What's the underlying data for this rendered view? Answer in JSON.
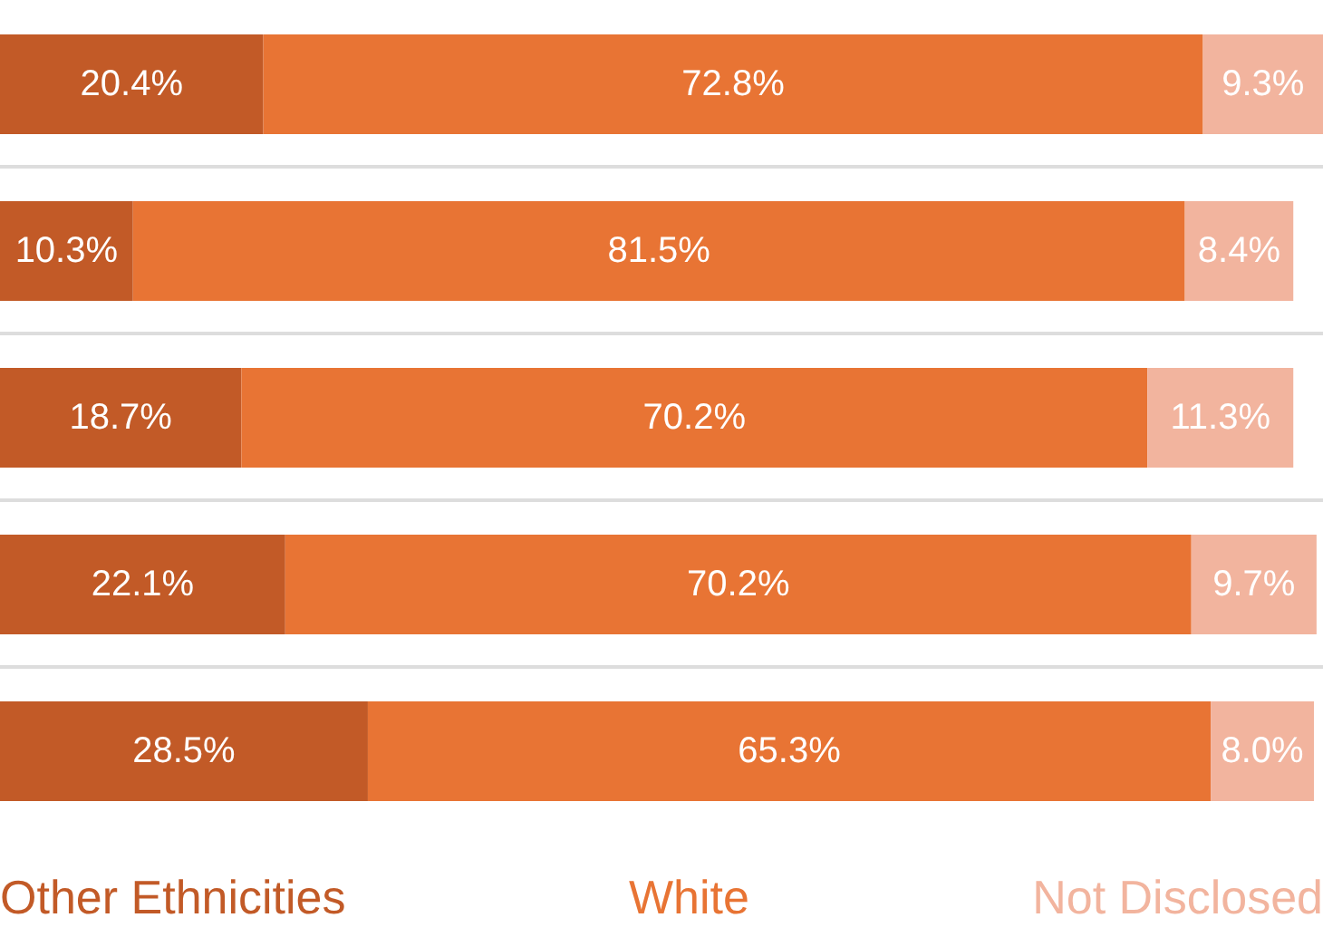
{
  "chart_data": {
    "type": "bar",
    "orientation": "horizontal",
    "stacked": true,
    "tick_labels": false,
    "categories": [
      null,
      null,
      null,
      null,
      null
    ],
    "grid": "y",
    "legend": "bottom",
    "series": [
      {
        "name": "Other Ethnicities",
        "color": "#c25a27",
        "values": [
          20.4,
          10.3,
          18.7,
          22.1,
          28.5
        ],
        "value_labels": [
          "20.4%",
          "10.3%",
          "18.7%",
          "22.1%",
          "28.5%"
        ]
      },
      {
        "name": "White",
        "color": "#e87434",
        "values": [
          72.8,
          81.5,
          70.2,
          70.2,
          65.3
        ],
        "value_labels": [
          "72.8%",
          "81.5%",
          "70.2%",
          "70.2%",
          "65.3%"
        ]
      },
      {
        "name": "Not Disclosed",
        "color": "#f2b49e",
        "values": [
          9.3,
          8.4,
          11.3,
          9.7,
          8.0
        ],
        "value_labels": [
          "9.3%",
          "8.4%",
          "11.3%",
          "9.7%",
          "8.0%"
        ]
      }
    ]
  }
}
